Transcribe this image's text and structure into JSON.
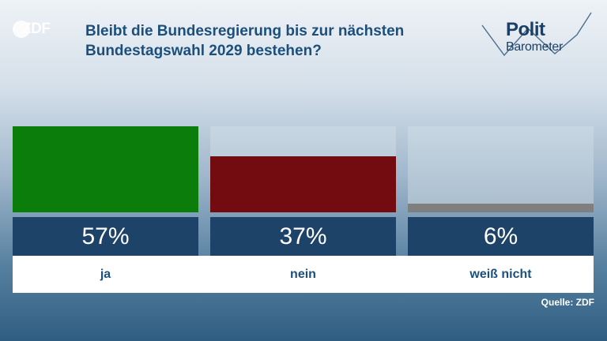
{
  "brand": {
    "logo": "ZDF"
  },
  "title": "Bleibt die Bundesregierung bis zur nächsten Bundestagswahl 2029 bestehen?",
  "politbarometer": {
    "word1": "Polit",
    "word2": "Barometer"
  },
  "source": "Quelle: ZDF",
  "chart_data": {
    "type": "bar",
    "title": "Bleibt die Bundesregierung bis zur nächsten Bundestagswahl 2029 bestehen?",
    "categories": [
      "ja",
      "nein",
      "weiß nicht"
    ],
    "values": [
      57,
      37,
      6
    ],
    "value_labels": [
      "57%",
      "37%",
      "6%"
    ],
    "colors": [
      "#0a7d0a",
      "#720c10",
      "#7f7f7f"
    ],
    "ylim": [
      0,
      57
    ],
    "unit": "%",
    "grid": false,
    "legend": "none"
  }
}
